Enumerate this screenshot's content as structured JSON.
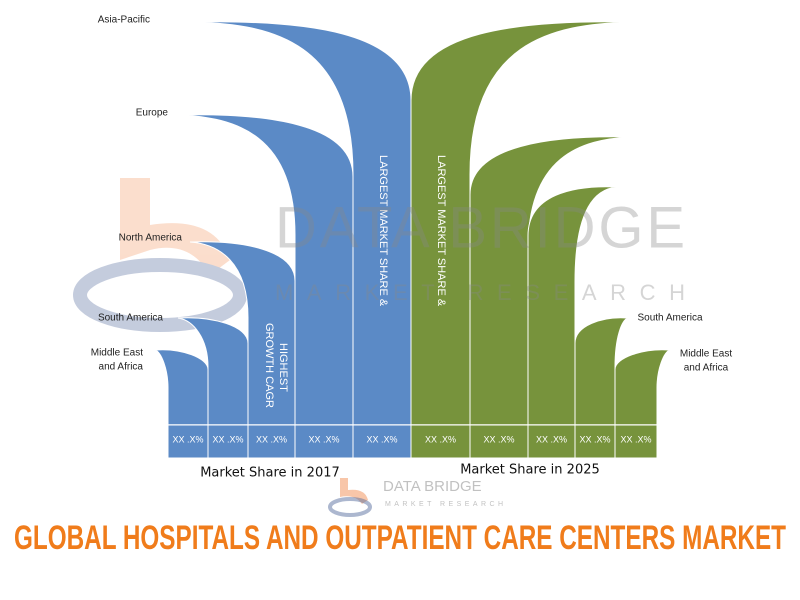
{
  "title": "GLOBAL HOSPITALS AND OUTPATIENT CARE CENTERS MARKET",
  "left_labels": [
    [
      "Asia-Pacific"
    ],
    [
      "Europe"
    ],
    [
      "North America"
    ],
    [
      "South America"
    ],
    [
      "Middle East",
      "and Africa"
    ]
  ],
  "right_labels": [
    [
      "South America"
    ],
    [
      "Middle East",
      "and Africa"
    ]
  ],
  "left_vertical": "LARGEST MARKET SHARE &",
  "right_vertical": "LARGEST MARKET SHARE &",
  "growth_label": [
    "HIGHEST",
    "GROWTH CAGR"
  ],
  "cells": [
    "XX .X%",
    "XX .X%",
    "XX .X%",
    "XX .X%",
    "XX .X%",
    "XX .X%",
    "XX .X%",
    "XX .X%",
    "XX .X%",
    "XX .X%"
  ],
  "captions": [
    "Market Share in 2017",
    "Market Share in 2025"
  ],
  "watermark": {
    "name": "DATA BRIDGE",
    "tagline": "MARKET RESEARCH"
  }
}
